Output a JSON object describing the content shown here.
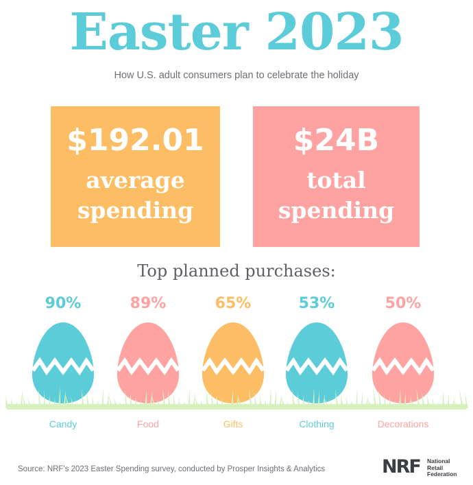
{
  "title": "Easter 2023",
  "subtitle": "How U.S. adult consumers plan to celebrate the holiday",
  "stats": [
    {
      "value": "$192.01",
      "label": "average\nspending",
      "color": "#fdbd64"
    },
    {
      "value": "$24B",
      "label": "total\nspending",
      "color": "#fea3a1"
    }
  ],
  "section_heading": "Top planned purchases:",
  "chart_data": {
    "type": "bar",
    "categories": [
      "Candy",
      "Food",
      "Gifts",
      "Clothing",
      "Decorations"
    ],
    "values": [
      90,
      89,
      65,
      53,
      50
    ],
    "value_labels": [
      "90%",
      "89%",
      "65%",
      "53%",
      "50%"
    ],
    "colors": [
      "#5ccdd8",
      "#fea3a1",
      "#fdbd64",
      "#5ccdd8",
      "#fea3a1"
    ],
    "title": "Top planned purchases:"
  },
  "source": "Source: NRF's 2023 Easter Spending survey, conducted by Prosper Insights & Analytics",
  "logo": {
    "mark": "NRF",
    "line1": "National",
    "line2": "Retail",
    "line3": "Federation"
  },
  "colors": {
    "teal": "#5ccdd8",
    "orange": "#fdbd64",
    "pink": "#fea3a1",
    "grass": "#d6f0be"
  }
}
